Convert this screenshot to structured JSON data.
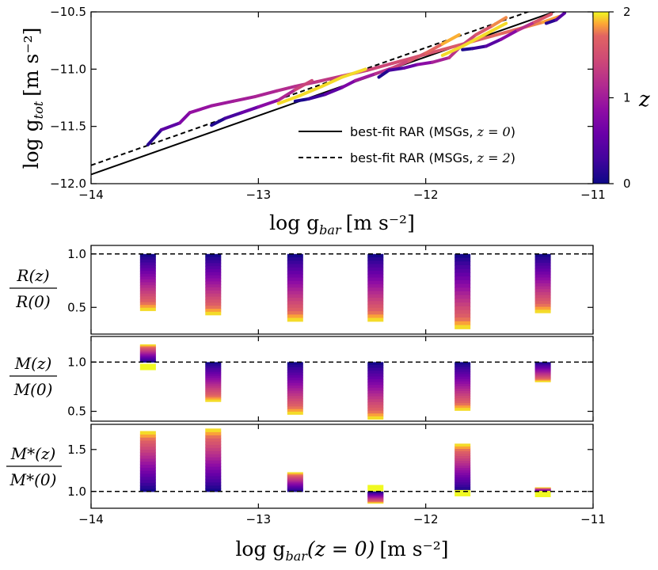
{
  "chart_data": [
    {
      "type": "line",
      "panel": "main",
      "xlabel_main": "log g",
      "xlabel_sub": "bar",
      "xlabel_unit": "[m s⁻²]",
      "ylabel_main": "log g",
      "ylabel_sub": "tot",
      "ylabel_unit": "[m s⁻²]",
      "xlim": [
        -14,
        -11
      ],
      "ylim": [
        -12,
        -10.5
      ],
      "xticks": [
        -14,
        -13,
        -12,
        -11
      ],
      "xtick_labels": [
        "−14",
        "−13",
        "−12",
        "−11"
      ],
      "yticks": [
        -12,
        -11.5,
        -11,
        -10.5
      ],
      "ytick_labels": [
        "−12.0",
        "−11.5",
        "−11.0",
        "−10.5"
      ],
      "colorbar": {
        "label": "z",
        "range": [
          0,
          2
        ],
        "ticks": [
          0,
          1,
          2
        ],
        "tick_labels": [
          "0",
          "1",
          "2"
        ],
        "colormap": "plasma"
      },
      "legend": {
        "position": "lower-right",
        "entries": [
          {
            "style": "solid",
            "text": "best-fit RAR (MSGs, ",
            "zexpr": "z = 0",
            "tail": ")"
          },
          {
            "style": "dashed",
            "text": "best-fit RAR (MSGs, ",
            "zexpr": "z = 2",
            "tail": ")"
          }
        ]
      },
      "fit_lines": [
        {
          "name": "z=0",
          "style": "solid",
          "x": [
            -14,
            -11
          ],
          "y": [
            -11.92,
            -10.38
          ]
        },
        {
          "name": "z=2",
          "style": "dashed",
          "x": [
            -14,
            -11
          ],
          "y": [
            -11.84,
            -10.3
          ]
        }
      ],
      "tracks": [
        {
          "x": [
            -13.66,
            -13.58,
            -13.47,
            -13.41,
            -13.28,
            -13.15,
            -13.02,
            -12.89,
            -12.78,
            -12.65,
            -12.5,
            -12.35,
            -12.2,
            -12.05,
            -11.9,
            -11.75,
            -11.6,
            -11.45,
            -11.3,
            -11.2
          ],
          "z": [
            0.0,
            0.3,
            0.65,
            0.85,
            0.95,
            1.0,
            1.05,
            1.12,
            1.18,
            1.25,
            1.32,
            1.38,
            1.45,
            1.52,
            1.58,
            1.64,
            1.7,
            1.76,
            1.82,
            1.88
          ],
          "y": [
            -11.66,
            -11.53,
            -11.47,
            -11.38,
            -11.32,
            -11.28,
            -11.24,
            -11.19,
            -11.15,
            -11.11,
            -11.06,
            -11.01,
            -10.95,
            -10.89,
            -10.83,
            -10.77,
            -10.71,
            -10.65,
            -10.59,
            -10.54
          ]
        },
        {
          "x": [
            -13.28,
            -13.2,
            -13.1,
            -13.0,
            -12.88,
            -12.78,
            -12.68
          ],
          "z": [
            0.0,
            0.2,
            0.45,
            0.7,
            0.95,
            1.25,
            1.55
          ],
          "y": [
            -11.49,
            -11.43,
            -11.38,
            -11.33,
            -11.27,
            -11.18,
            -11.1
          ]
        },
        {
          "x": [
            -12.78,
            -12.7,
            -12.6,
            -12.5,
            -12.42,
            -12.3,
            -12.2,
            -12.1,
            -12.0,
            -11.9,
            -11.8
          ],
          "z": [
            0.0,
            0.15,
            0.35,
            0.6,
            0.85,
            1.1,
            1.3,
            1.5,
            1.65,
            1.8,
            1.95
          ],
          "y": [
            -11.28,
            -11.26,
            -11.22,
            -11.16,
            -11.1,
            -11.04,
            -10.99,
            -10.93,
            -10.86,
            -10.78,
            -10.7
          ]
        },
        {
          "x": [
            -12.28,
            -12.22,
            -12.13,
            -12.05,
            -11.96,
            -11.86,
            -11.79,
            -11.7,
            -11.6,
            -11.52
          ],
          "z": [
            0.0,
            0.2,
            0.45,
            0.7,
            0.95,
            1.15,
            1.3,
            1.5,
            1.7,
            1.9
          ],
          "y": [
            -11.07,
            -11.01,
            -10.99,
            -10.96,
            -10.94,
            -10.9,
            -10.8,
            -10.7,
            -10.62,
            -10.55
          ]
        },
        {
          "x": [
            -11.78,
            -11.72,
            -11.64,
            -11.55,
            -11.45,
            -11.35,
            -11.25
          ],
          "z": [
            0.0,
            0.15,
            0.3,
            0.6,
            1.0,
            1.4,
            1.8
          ],
          "y": [
            -10.83,
            -10.82,
            -10.8,
            -10.74,
            -10.66,
            -10.59,
            -10.52
          ]
        },
        {
          "x": [
            -11.28,
            -11.22,
            -11.17
          ],
          "z": [
            0.0,
            0.3,
            0.6
          ],
          "y": [
            -10.6,
            -10.57,
            -10.51
          ]
        },
        {
          "x": [
            -12.88,
            -12.75,
            -12.62,
            -12.5,
            -12.36
          ],
          "z": [
            1.95,
            1.95,
            1.95,
            1.95,
            1.95
          ],
          "y": [
            -11.3,
            -11.23,
            -11.15,
            -11.07,
            -11.0
          ]
        },
        {
          "x": [
            -11.9,
            -11.78,
            -11.65,
            -11.52
          ],
          "z": [
            1.95,
            1.95,
            1.95,
            1.95
          ],
          "y": [
            -10.88,
            -10.8,
            -10.7,
            -10.6
          ]
        }
      ]
    },
    {
      "type": "bar",
      "panel": "R",
      "ylabel_num": "R(z)",
      "ylabel_den": "R(0)",
      "ylim": [
        0.25,
        1.08
      ],
      "yticks": [
        0.5,
        1.0
      ],
      "ytick_labels": [
        "0.5",
        "1.0"
      ],
      "reference": 1.0,
      "positions": [
        -13.66,
        -13.27,
        -12.78,
        -12.3,
        -11.78,
        -11.3
      ],
      "ends": [
        0.47,
        0.43,
        0.37,
        0.37,
        0.3,
        0.45
      ]
    },
    {
      "type": "bar",
      "panel": "M",
      "ylabel_num": "M(z)",
      "ylabel_den": "M(0)",
      "ylim": [
        0.4,
        1.26
      ],
      "yticks": [
        0.5,
        1.0
      ],
      "ytick_labels": [
        "0.5",
        "1.0"
      ],
      "reference": 1.0,
      "positions": [
        -13.66,
        -13.27,
        -12.78,
        -12.3,
        -11.78,
        -11.3
      ],
      "ends": [
        1.18,
        0.6,
        0.47,
        0.42,
        0.51,
        0.8
      ],
      "endpoints": [
        0.95,
        null,
        null,
        null,
        null,
        null
      ]
    },
    {
      "type": "bar",
      "panel": "Mstar",
      "ylabel_num": "M*(z)",
      "ylabel_den": "M*(0)",
      "ylim": [
        0.8,
        1.8
      ],
      "yticks": [
        1.0,
        1.5
      ],
      "ytick_labels": [
        "1.0",
        "1.5"
      ],
      "reference": 1.0,
      "positions": [
        -13.66,
        -13.27,
        -12.78,
        -12.3,
        -11.78,
        -11.3
      ],
      "ends": [
        1.72,
        1.75,
        1.23,
        0.86,
        1.57,
        1.05
      ],
      "endpoints": [
        null,
        null,
        null,
        1.04,
        0.98,
        0.97
      ],
      "xlabel_main": "log g",
      "xlabel_sub": "bar",
      "xlabel_arg": "(z = 0)",
      "xlabel_unit": "[m s⁻²]",
      "xticks": [
        -14,
        -13,
        -12,
        -11
      ],
      "xtick_labels": [
        "−14",
        "−13",
        "−12",
        "−11"
      ]
    }
  ]
}
